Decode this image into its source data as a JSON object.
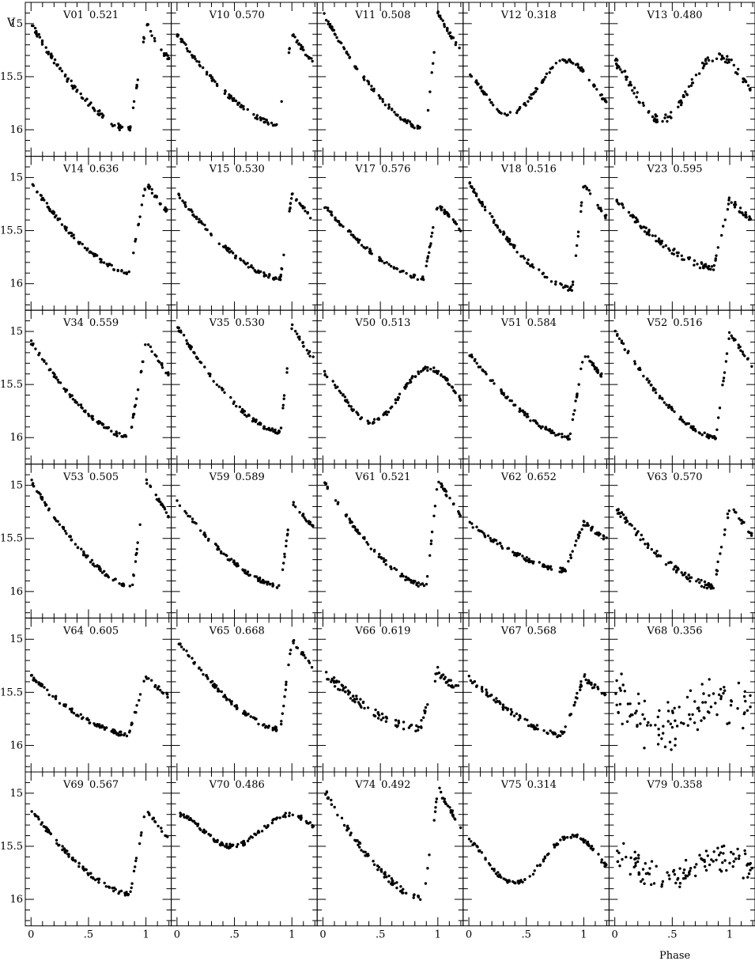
{
  "figure": {
    "y_axis_label": "V",
    "x_axis_label": "Phase",
    "y_tick_labels": [
      "15",
      "15.5",
      "16"
    ],
    "x_tick_labels": [
      "0",
      ".5",
      "1"
    ]
  },
  "chart_data": {
    "type": "scatter",
    "grid": false,
    "xlabel": "Phase",
    "ylabel": "V",
    "xlim": [
      -0.05,
      1.22
    ],
    "ylim": [
      16.25,
      14.8
    ],
    "y_inverted": true,
    "x_ticks": [
      0,
      0.5,
      1
    ],
    "y_ticks": [
      15,
      15.5,
      16
    ],
    "panels": [
      {
        "star": "V01",
        "period": "0.521",
        "shape": "rrab",
        "mag0": 15.0,
        "magmin": 16.0,
        "rise": 0.86,
        "peak": 0.95,
        "noise": 0.03
      },
      {
        "star": "V10",
        "period": "0.570",
        "shape": "rrab",
        "mag0": 15.1,
        "magmin": 15.95,
        "rise": 0.88,
        "peak": 0.99,
        "noise": 0.02
      },
      {
        "star": "V11",
        "period": "0.508",
        "shape": "rrab",
        "mag0": 14.9,
        "magmin": 16.0,
        "rise": 0.9,
        "peak": 0.98,
        "noise": 0.02
      },
      {
        "star": "V12",
        "period": "0.318",
        "shape": "rrc",
        "mag0": 15.35,
        "magmin": 15.85,
        "rise": 0.6,
        "peak": 0.85,
        "noise": 0.02
      },
      {
        "star": "V13",
        "period": "0.480",
        "shape": "rrc",
        "mag0": 15.3,
        "magmin": 15.9,
        "rise": 0.65,
        "peak": 0.9,
        "noise": 0.04
      },
      {
        "star": "V14",
        "period": "0.636",
        "shape": "rrab",
        "mag0": 15.05,
        "magmin": 15.9,
        "rise": 0.86,
        "peak": 0.98,
        "noise": 0.02
      },
      {
        "star": "V15",
        "period": "0.530",
        "shape": "rrab",
        "mag0": 15.15,
        "magmin": 15.95,
        "rise": 0.9,
        "peak": 0.96,
        "noise": 0.02
      },
      {
        "star": "V17",
        "period": "0.576",
        "shape": "rrab",
        "mag0": 15.25,
        "magmin": 15.95,
        "rise": 0.88,
        "peak": 0.98,
        "noise": 0.02
      },
      {
        "star": "V18",
        "period": "0.516",
        "shape": "rrab",
        "mag0": 15.05,
        "magmin": 16.05,
        "rise": 0.9,
        "peak": 0.95,
        "noise": 0.02
      },
      {
        "star": "V23",
        "period": "0.595",
        "shape": "rrab",
        "mag0": 15.2,
        "magmin": 15.85,
        "rise": 0.86,
        "peak": 1.0,
        "noise": 0.03
      },
      {
        "star": "V34",
        "period": "0.559",
        "shape": "rrab",
        "mag0": 15.1,
        "magmin": 16.0,
        "rise": 0.86,
        "peak": 0.98,
        "noise": 0.02
      },
      {
        "star": "V35",
        "period": "0.530",
        "shape": "rrab",
        "mag0": 14.95,
        "magmin": 15.95,
        "rise": 0.9,
        "peak": 0.98,
        "noise": 0.02
      },
      {
        "star": "V50",
        "period": "0.513",
        "shape": "rrc",
        "mag0": 15.35,
        "magmin": 15.85,
        "rise": 0.62,
        "peak": 0.92,
        "noise": 0.02
      },
      {
        "star": "V51",
        "period": "0.584",
        "shape": "rrab",
        "mag0": 15.2,
        "magmin": 16.0,
        "rise": 0.88,
        "peak": 0.96,
        "noise": 0.02
      },
      {
        "star": "V52",
        "period": "0.516",
        "shape": "rrab",
        "mag0": 15.0,
        "magmin": 16.0,
        "rise": 0.88,
        "peak": 0.97,
        "noise": 0.02
      },
      {
        "star": "V53",
        "period": "0.505",
        "shape": "rrab",
        "mag0": 14.95,
        "magmin": 15.95,
        "rise": 0.88,
        "peak": 0.98,
        "noise": 0.02
      },
      {
        "star": "V59",
        "period": "0.589",
        "shape": "rrab",
        "mag0": 15.15,
        "magmin": 15.95,
        "rise": 0.9,
        "peak": 0.98,
        "noise": 0.02
      },
      {
        "star": "V61",
        "period": "0.521",
        "shape": "rrab",
        "mag0": 14.95,
        "magmin": 15.95,
        "rise": 0.9,
        "peak": 0.97,
        "noise": 0.02
      },
      {
        "star": "V62",
        "period": "0.652",
        "shape": "rrab",
        "mag0": 15.35,
        "magmin": 15.8,
        "rise": 0.84,
        "peak": 0.98,
        "noise": 0.02
      },
      {
        "star": "V63",
        "period": "0.570",
        "shape": "rrab",
        "mag0": 15.2,
        "magmin": 15.95,
        "rise": 0.86,
        "peak": 0.98,
        "noise": 0.03
      },
      {
        "star": "V64",
        "period": "0.605",
        "shape": "rrab",
        "mag0": 15.35,
        "magmin": 15.9,
        "rise": 0.85,
        "peak": 0.95,
        "noise": 0.02
      },
      {
        "star": "V65",
        "period": "0.668",
        "shape": "rrab",
        "mag0": 15.0,
        "magmin": 15.85,
        "rise": 0.9,
        "peak": 0.98,
        "noise": 0.02
      },
      {
        "star": "V66",
        "period": "0.619",
        "shape": "rrab",
        "mag0": 15.3,
        "magmin": 15.85,
        "rise": 0.84,
        "peak": 0.98,
        "noise": 0.04
      },
      {
        "star": "V67",
        "period": "0.568",
        "shape": "rrab",
        "mag0": 15.35,
        "magmin": 15.9,
        "rise": 0.82,
        "peak": 0.97,
        "noise": 0.03
      },
      {
        "star": "V68",
        "period": "0.356",
        "shape": "scatter",
        "mag0": 15.55,
        "magmin": 15.85,
        "rise": 0.7,
        "peak": 0.95,
        "noise": 0.15
      },
      {
        "star": "V69",
        "period": "0.567",
        "shape": "rrab",
        "mag0": 15.15,
        "magmin": 15.95,
        "rise": 0.86,
        "peak": 0.98,
        "noise": 0.02
      },
      {
        "star": "V70",
        "period": "0.486",
        "shape": "rrc",
        "mag0": 15.2,
        "magmin": 15.5,
        "rise": 0.4,
        "peak": 0.98,
        "noise": 0.02
      },
      {
        "star": "V74",
        "period": "0.492",
        "shape": "rrab",
        "mag0": 14.95,
        "magmin": 16.0,
        "rise": 0.88,
        "peak": 0.98,
        "noise": 0.03
      },
      {
        "star": "V75",
        "period": "0.314",
        "shape": "rrc",
        "mag0": 15.4,
        "magmin": 15.85,
        "rise": 0.65,
        "peak": 0.9,
        "noise": 0.02
      },
      {
        "star": "V79",
        "period": "0.358",
        "shape": "scatter",
        "mag0": 15.6,
        "magmin": 15.8,
        "rise": 0.6,
        "peak": 0.95,
        "noise": 0.08
      }
    ]
  }
}
